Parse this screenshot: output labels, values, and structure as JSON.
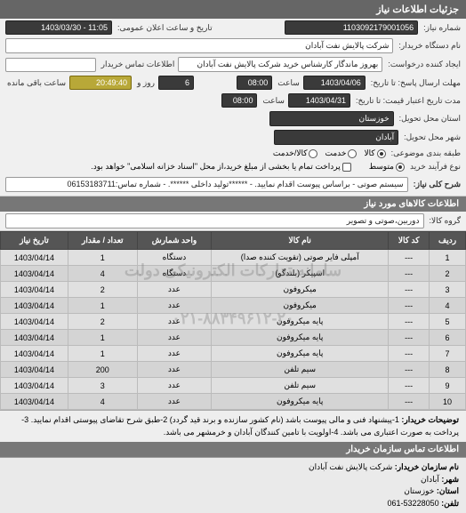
{
  "header": {
    "title": "جزئیات اطلاعات نیاز"
  },
  "form": {
    "req_no_label": "شماره نیاز:",
    "req_no": "1103092179001056",
    "announce_label": "تاریخ و ساعت اعلان عمومی:",
    "announce_val": "11:05 - 1403/03/30",
    "buyer_org_label": "نام دستگاه خریدار:",
    "buyer_org": "شرکت پالایش نفت آبادان",
    "creator_label": "ایجاد کننده درخواست:",
    "creator": "بهروز ماندگار کارشناس خرید شرکت پالایش نفت آبادان",
    "contact_label": "اطلاعات تماس خریدار",
    "deadline_label": "مهلت ارسال پاسخ: تا تاریخ:",
    "deadline_date": "1403/04/06",
    "time_label": "ساعت",
    "deadline_time": "08:00",
    "remain_day_pre": "",
    "remain_day": "6",
    "remain_day_label": "روز و",
    "remain_time": "20:49:40",
    "remain_suffix": "ساعت باقی مانده",
    "validity_label": "مدت تاریخ اعتبار قیمت: تا تاریخ:",
    "validity_date": "1403/04/31",
    "validity_time": "08:00",
    "province_label": "استان محل تحویل:",
    "province": "خوزستان",
    "city_label": "شهر محل تحویل:",
    "city": "آبادان",
    "subject_cat_label": "طبقه بندی موضوعی:",
    "cat_goods": "کالا",
    "cat_service": "خدمت",
    "cat_both": "کالا/خدمت",
    "buy_type_label": "نوع فرآیند خرید",
    "buy_medium": "متوسط",
    "buy_note": "پرداخت تمام یا بخشی از مبلغ خرید،از محل \"اسناد خزانه اسلامی\" خواهد بود.",
    "need_title_label": "شرح کلی نیاز:",
    "need_title": "سیستم صوتی - براساس پیوست اقدام نمایید. - ******تولید داخلی ******. - شماره تماس:06153183711"
  },
  "goods_section": {
    "title": "اطلاعات کالاهای مورد نیاز",
    "group_label": "گروه کالا:",
    "group_value": "دوربین،صوتی و تصویر"
  },
  "table": {
    "headers": [
      "ردیف",
      "کد کالا",
      "نام کالا",
      "واحد شمارش",
      "تعداد / مقدار",
      "تاریخ نیاز"
    ],
    "rows": [
      [
        "1",
        "---",
        "آمپلی فایر صوتی (تقویت کننده صدا)",
        "دستگاه",
        "1",
        "1403/04/14"
      ],
      [
        "2",
        "---",
        "اسپیکر (بلندگو)",
        "دستگاه",
        "4",
        "1403/04/14"
      ],
      [
        "3",
        "---",
        "میکروفون",
        "عدد",
        "2",
        "1403/04/14"
      ],
      [
        "4",
        "---",
        "میکروفون",
        "عدد",
        "1",
        "1403/04/14"
      ],
      [
        "5",
        "---",
        "پایه میکروفون",
        "عدد",
        "2",
        "1403/04/14"
      ],
      [
        "6",
        "---",
        "پایه میکروفون",
        "عدد",
        "1",
        "1403/04/14"
      ],
      [
        "7",
        "---",
        "پایه میکروفون",
        "عدد",
        "1",
        "1403/04/14"
      ],
      [
        "8",
        "---",
        "سیم تلفن",
        "عدد",
        "200",
        "1403/04/14"
      ],
      [
        "9",
        "---",
        "سیم تلفن",
        "عدد",
        "3",
        "1403/04/14"
      ],
      [
        "10",
        "---",
        "پایه میکروفون",
        "عدد",
        "4",
        "1403/04/14"
      ]
    ],
    "watermark1": "سامانه تدارکات الکترونیکی دولت",
    "watermark2": "۰۲۱-۸۸۳۴۹۶۱۲-۲۰"
  },
  "notes": {
    "label": "توضیحات خریدار:",
    "text": "1-پیشنهاد فنی و مالی پیوست باشد (نام کشور سازنده و برند قید گردد) 2-طبق شرح تقاضای پیوستی اقدام نمایید. 3-پرداخت به صورت اعتباری می باشد. 4-اولویت با تامین کنندگان آبادان و خرمشهر می باشد."
  },
  "contact": {
    "title": "اطلاعات تماس سازمان خریدار",
    "org_label": "نام سازمان خریدار:",
    "org": "شرکت پالایش نفت آبادان",
    "city_label": "شهر:",
    "city": "آبادان",
    "province_label": "استان:",
    "province": "خوزستان",
    "phone_label": "تلفن:",
    "phone": "53228050-061"
  }
}
